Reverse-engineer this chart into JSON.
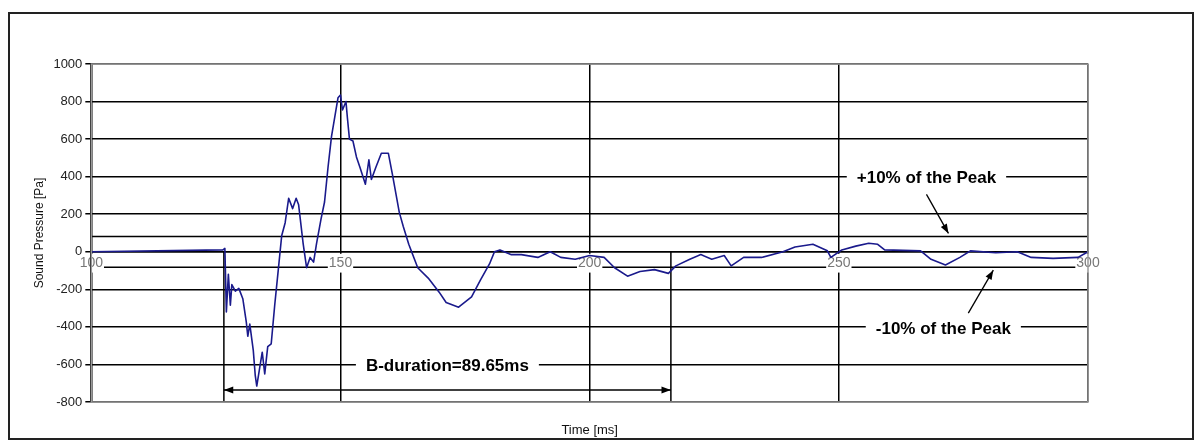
{
  "chart_data": {
    "type": "line",
    "xlabel": "Time [ms]",
    "ylabel": "Sound Pressure [Pa]",
    "series": [
      {
        "color": "#1a1a8c",
        "x": [
          100,
          126.4,
          126.8,
          127.1,
          127.5,
          127.9,
          128.2,
          128.9,
          129.6,
          130.4,
          131.1,
          131.4,
          131.8,
          132.5,
          132.9,
          133.2,
          133.8,
          134.3,
          134.8,
          135.4,
          136.1,
          136.8,
          137.5,
          138.2,
          138.9,
          139.6,
          140.4,
          141.1,
          141.6,
          142.5,
          143.2,
          143.9,
          144.6,
          145.2,
          146.1,
          146.8,
          147.5,
          148.2,
          148.9,
          149.5,
          150.0,
          150.4,
          151.1,
          151.4,
          151.8,
          152.5,
          153.2,
          153.9,
          155.0,
          155.7,
          156.2,
          157.1,
          158.2,
          159.6,
          160.4,
          161.8,
          162.6,
          163.7,
          165.5,
          167.6,
          169.8,
          171.2,
          173.7,
          176.3,
          178.1,
          179.9,
          180.9,
          182.0,
          184.2,
          186.3,
          189.6,
          192.1,
          194.2,
          197.1,
          200.0,
          202.9,
          205.0,
          207.6,
          210.1,
          213.0,
          215.8,
          217.3,
          220.1,
          222.3,
          224.5,
          227.0,
          228.4,
          230.9,
          234.5,
          238.8,
          241.2,
          244.8,
          247.7,
          248.4,
          250.6,
          253.4,
          256.0,
          257.8,
          259.2,
          266.4,
          268.5,
          271.4,
          274.3,
          276.4,
          281.5,
          285.8,
          288.6,
          293.0,
          298.0,
          300.0
        ],
        "values": [
          0,
          10,
          18,
          -320,
          -120,
          -285,
          -175,
          -210,
          -195,
          -250,
          -375,
          -450,
          -385,
          -525,
          -660,
          -715,
          -615,
          -535,
          -650,
          -505,
          -490,
          -285,
          -100,
          85,
          155,
          285,
          230,
          285,
          250,
          45,
          -85,
          -30,
          -55,
          45,
          175,
          265,
          450,
          615,
          725,
          820,
          835,
          755,
          800,
          710,
          600,
          590,
          505,
          450,
          360,
          490,
          385,
          450,
          525,
          525,
          415,
          210,
          135,
          40,
          -85,
          -140,
          -215,
          -270,
          -295,
          -240,
          -150,
          -65,
          0,
          10,
          -15,
          -15,
          -30,
          0,
          -30,
          -40,
          -20,
          -30,
          -85,
          -130,
          -105,
          -95,
          -115,
          -75,
          -40,
          -15,
          -40,
          -20,
          -75,
          -30,
          -30,
          0,
          25,
          40,
          5,
          -30,
          10,
          30,
          45,
          40,
          10,
          5,
          -40,
          -70,
          -30,
          5,
          -5,
          0,
          -30,
          -35,
          -30,
          0
        ]
      }
    ],
    "xlim": [
      100,
      300
    ],
    "xticks": [
      100,
      150,
      200,
      250,
      300
    ],
    "ylim": [
      -800,
      1000
    ],
    "yticks": [
      -800,
      -600,
      -400,
      -200,
      0,
      200,
      400,
      600,
      800,
      1000
    ],
    "grid": true,
    "legend": false,
    "marker": "none",
    "line_style": "solid",
    "ref_lines": [
      {
        "axis": "y",
        "value": 82,
        "color": "#000000"
      },
      {
        "axis": "y",
        "value": -82,
        "color": "#000000"
      },
      {
        "axis": "x",
        "value": 126.6,
        "color": "#000000"
      },
      {
        "axis": "x",
        "value": 216.3,
        "color": "#000000"
      }
    ],
    "annotations": [
      {
        "text": "+10% of the Peak",
        "x": 272,
        "y": 82
      },
      {
        "text": "-10% of the Peak",
        "x": 281,
        "y": -82
      },
      "B-duration=89.65ms"
    ]
  }
}
